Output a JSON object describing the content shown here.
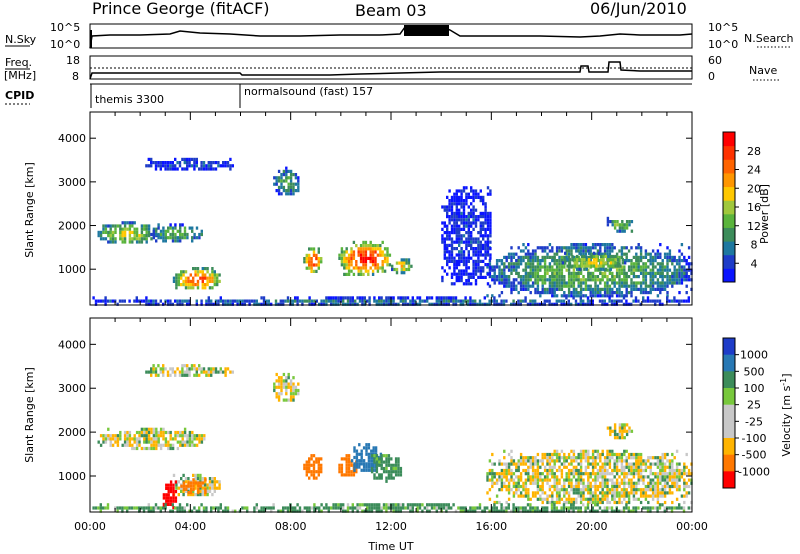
{
  "header": {
    "station": "Prince George (fitACF)",
    "beam": "Beam 03",
    "date": "06/Jun/2010"
  },
  "status_panels": {
    "nsky": {
      "label": "N.Sky",
      "left_ticks": [
        "10^5",
        "10^0"
      ],
      "right_ticks": [
        "10^5",
        "10^0"
      ],
      "right_label": "N.Search"
    },
    "freq": {
      "label_line1": "Freq.",
      "label_line2": "[MHz]",
      "left_ticks": [
        "18",
        "8"
      ],
      "right_ticks": [
        "60",
        "0"
      ],
      "right_label": "Nave"
    },
    "cpid": {
      "label": "CPID",
      "entries": [
        {
          "text": "themis 3300",
          "time": 0.0
        },
        {
          "text": "normalsound (fast) 157",
          "time": 6.0
        }
      ]
    }
  },
  "chart_data": [
    {
      "type": "heatmap",
      "name": "power",
      "ylabel": "Slant Range [km]",
      "xlabel": "",
      "xlim": [
        0,
        24
      ],
      "ylim": [
        180,
        4600
      ],
      "yticks": [
        1000,
        2000,
        3000,
        4000
      ],
      "colorbar": {
        "label": "Power [dB]",
        "ticks": [
          "4",
          "8",
          "12",
          "16",
          "20",
          "24",
          "28"
        ],
        "colors": [
          "#0a14ff",
          "#1e3cc8",
          "#1e78a0",
          "#3c8c5a",
          "#5ab43c",
          "#a0c83c",
          "#ffc800",
          "#ff9600",
          "#ff6400",
          "#ff3200",
          "#ff0000"
        ]
      },
      "regions": [
        {
          "t": [
            0.3,
            2.7
          ],
          "r": [
            1600,
            2100
          ],
          "level": 0.45
        },
        {
          "t": [
            2.4,
            4.5
          ],
          "r": [
            1650,
            2050
          ],
          "level": 0.35
        },
        {
          "t": [
            3.3,
            5.2
          ],
          "r": [
            550,
            1050
          ],
          "level": 0.7
        },
        {
          "t": [
            2.2,
            5.7
          ],
          "r": [
            3300,
            3550
          ],
          "level": 0.15
        },
        {
          "t": [
            7.3,
            8.3
          ],
          "r": [
            2700,
            3350
          ],
          "level": 0.3
        },
        {
          "t": [
            8.5,
            9.2
          ],
          "r": [
            950,
            1500
          ],
          "level": 0.75
        },
        {
          "t": [
            9.9,
            12.0
          ],
          "r": [
            900,
            1650
          ],
          "level": 0.8
        },
        {
          "t": [
            12.0,
            12.8
          ],
          "r": [
            950,
            1250
          ],
          "level": 0.5
        },
        {
          "t": [
            15.8,
            24.0
          ],
          "r": [
            400,
            1600
          ],
          "level": 0.35
        },
        {
          "t": [
            18.8,
            21.3
          ],
          "r": [
            1000,
            1400
          ],
          "level": 0.5
        },
        {
          "t": [
            20.6,
            21.6
          ],
          "r": [
            1900,
            2200
          ],
          "level": 0.4
        },
        {
          "t": [
            14.0,
            16.0
          ],
          "r": [
            700,
            2900
          ],
          "level": 0.1
        },
        {
          "t": [
            0.0,
            24.0
          ],
          "r": [
            200,
            380
          ],
          "level": 0.2
        }
      ]
    },
    {
      "type": "heatmap",
      "name": "velocity",
      "ylabel": "Slant Range [km]",
      "xlabel": "Time UT",
      "xlim": [
        0,
        24
      ],
      "ylim": [
        180,
        4600
      ],
      "yticks": [
        1000,
        2000,
        3000,
        4000
      ],
      "xticks": [
        "00:00",
        "04:00",
        "08:00",
        "12:00",
        "16:00",
        "20:00",
        "00:00"
      ],
      "colorbar": {
        "label": "Velocity [m s^-1]",
        "ticks": [
          "1000",
          "500",
          "100",
          "25",
          "-25",
          "-100",
          "-500",
          "-1000"
        ],
        "colors": [
          "#1e3cc8",
          "#2878b4",
          "#3c8c5a",
          "#78c83c",
          "#c8c8c8",
          "#c8c8c8",
          "#ffb400",
          "#ff7800",
          "#ff0000"
        ]
      },
      "regions": [
        {
          "t": [
            0.3,
            4.6
          ],
          "r": [
            1650,
            2100
          ],
          "vel": 0
        },
        {
          "t": [
            2.2,
            5.7
          ],
          "r": [
            3300,
            3550
          ],
          "vel": 0
        },
        {
          "t": [
            3.3,
            5.2
          ],
          "r": [
            550,
            1050
          ],
          "vel": 0
        },
        {
          "t": [
            3.6,
            4.6
          ],
          "r": [
            650,
            950
          ],
          "vel": -300
        },
        {
          "t": [
            2.9,
            3.4
          ],
          "r": [
            300,
            900
          ],
          "vel": -900
        },
        {
          "t": [
            7.3,
            8.3
          ],
          "r": [
            2700,
            3350
          ],
          "vel": 0
        },
        {
          "t": [
            8.5,
            9.2
          ],
          "r": [
            950,
            1500
          ],
          "vel": -300
        },
        {
          "t": [
            9.9,
            10.6
          ],
          "r": [
            1000,
            1500
          ],
          "vel": -300
        },
        {
          "t": [
            10.4,
            11.6
          ],
          "r": [
            1100,
            1750
          ],
          "vel": 600
        },
        {
          "t": [
            11.2,
            12.4
          ],
          "r": [
            900,
            1500
          ],
          "vel": 120
        },
        {
          "t": [
            15.8,
            24.0
          ],
          "r": [
            400,
            1600
          ],
          "vel": 0
        },
        {
          "t": [
            20.6,
            21.6
          ],
          "r": [
            1900,
            2200
          ],
          "vel": 0
        },
        {
          "t": [
            0.0,
            24.0
          ],
          "r": [
            200,
            380
          ],
          "vel": 100
        }
      ]
    }
  ]
}
